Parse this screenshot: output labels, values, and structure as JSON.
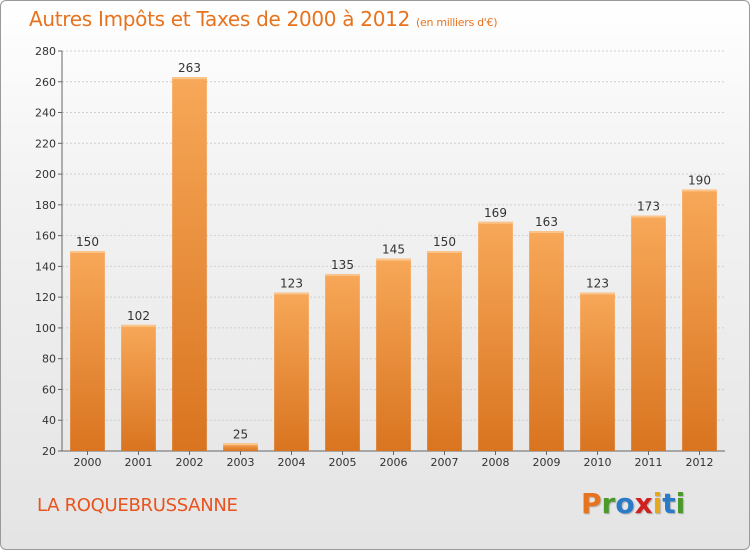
{
  "header": {
    "title": "Autres Impôts et Taxes de 2000 à 2012",
    "unit": "(en milliers d'€)"
  },
  "footer": {
    "commune": "LA ROQUEBRUSSANNE",
    "logo": "Proxiti",
    "logo_colors": [
      "#e8731e",
      "#4a9a2a",
      "#2a7ac8",
      "#d02020",
      "#e8a81e",
      "#2a7ac8",
      "#4a9a2a"
    ]
  },
  "chart_data": {
    "type": "bar",
    "title": "Autres Impôts et Taxes de 2000 à 2012",
    "subtitle": "(en milliers d'€)",
    "categories": [
      "2000",
      "2001",
      "2002",
      "2003",
      "2004",
      "2005",
      "2006",
      "2007",
      "2008",
      "2009",
      "2010",
      "2011",
      "2012"
    ],
    "values": [
      150,
      102,
      263,
      25,
      123,
      135,
      145,
      150,
      169,
      163,
      123,
      173,
      190
    ],
    "ylim": [
      20,
      280
    ],
    "yticks": [
      20,
      40,
      60,
      80,
      100,
      120,
      140,
      160,
      180,
      200,
      220,
      240,
      260,
      280
    ],
    "grid": true,
    "bar_color_top": "#f7a858",
    "bar_color_bottom": "#d97420",
    "xlabel": "",
    "ylabel": ""
  }
}
